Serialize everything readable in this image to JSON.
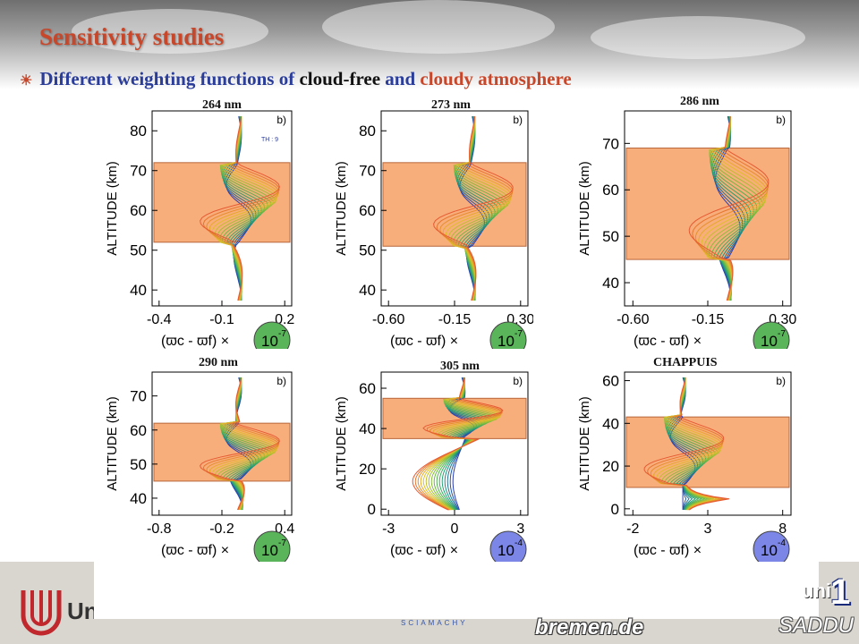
{
  "title": "Sensitivity studies",
  "subtitle": {
    "part1": "Different weighting functions of ",
    "part2": "cloud-free",
    "part3": " and ",
    "part4": "cloudy atmosphere"
  },
  "colors": {
    "title": "#c8472a",
    "subtitle_blue": "#2a3d9a",
    "band": "#f7a064",
    "badge_green": "#5ab45a",
    "badge_blue": "#7b86e6"
  },
  "panels": [
    {
      "wavelength": "264 nm",
      "corner": "b)",
      "ylabel": "ALTITUDE (km)",
      "yticks": [
        "40",
        "50",
        "60",
        "70",
        "80"
      ],
      "yrange": [
        36,
        85
      ],
      "xticks": [
        "-0.4",
        "-0.1",
        "0.2"
      ],
      "band": [
        52,
        72
      ],
      "scale": "10",
      "exp": "-7",
      "badge": "green",
      "legend_th": "TH : 9"
    },
    {
      "wavelength": "273 nm",
      "corner": "b)",
      "ylabel": "ALTITUDE (km)",
      "yticks": [
        "40",
        "50",
        "60",
        "70",
        "80"
      ],
      "yrange": [
        36,
        85
      ],
      "xticks": [
        "-0.60",
        "-0.15",
        "0.30"
      ],
      "band": [
        51,
        72
      ],
      "scale": "10",
      "exp": "-7",
      "badge": "green"
    },
    {
      "wavelength": "286 nm",
      "corner": "b)",
      "ylabel": "ALTITUDE (km)",
      "yticks": [
        "40",
        "50",
        "60",
        "70"
      ],
      "yrange": [
        35,
        77
      ],
      "xticks": [
        "-0.60",
        "-0.15",
        "0.30"
      ],
      "band": [
        45,
        69
      ],
      "scale": "10",
      "exp": "-7",
      "badge": "green"
    },
    {
      "wavelength": "290 nm",
      "corner": "b)",
      "ylabel": "ALTITUDE (km)",
      "yticks": [
        "40",
        "50",
        "60",
        "70"
      ],
      "yrange": [
        35,
        77
      ],
      "xticks": [
        "-0.8",
        "-0.2",
        "0.4"
      ],
      "band": [
        45,
        62
      ],
      "scale": "10",
      "exp": "-7",
      "badge": "green"
    },
    {
      "wavelength": "305 nm",
      "corner": "b)",
      "ylabel": "ALTITUDE (km)",
      "yticks": [
        "0",
        "20",
        "40",
        "60"
      ],
      "yrange": [
        -3,
        68
      ],
      "xticks": [
        "-3",
        "0",
        "3"
      ],
      "band": [
        35,
        55
      ],
      "scale": "10",
      "exp": "-4",
      "badge": "blue"
    },
    {
      "wavelength": "CHAPPUIS",
      "corner": "b)",
      "ylabel": "ALTITUDE (km)",
      "yticks": [
        "0",
        "20",
        "40",
        "60"
      ],
      "yrange": [
        -3,
        64
      ],
      "xticks": [
        "-2",
        "3",
        "8"
      ],
      "band": [
        10,
        43
      ],
      "scale": "10",
      "exp": "-4",
      "badge": "blue"
    }
  ],
  "footer": {
    "uni_text": "Uni",
    "bremen": "bremen.de",
    "saddu": "SADDU",
    "uni_right": "uni",
    "num": "1",
    "sciamachy": "SCIAMACHY"
  }
}
